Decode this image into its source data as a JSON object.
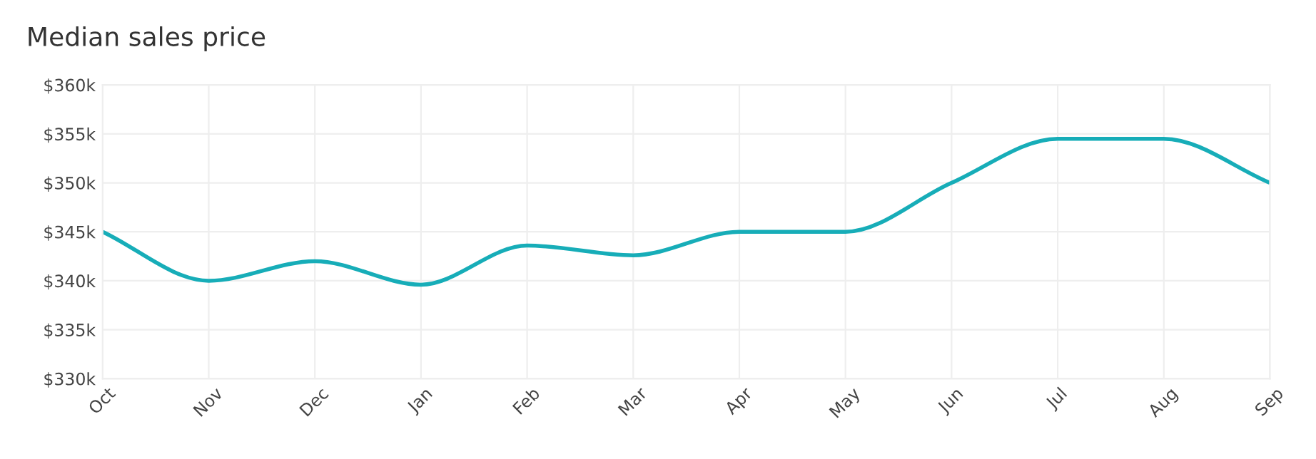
{
  "chart_data": {
    "type": "line",
    "title": "Median sales price",
    "categories": [
      "Oct",
      "Nov",
      "Dec",
      "Jan",
      "Feb",
      "Mar",
      "Apr",
      "May",
      "Jun",
      "Jul",
      "Aug",
      "Sep"
    ],
    "series": [
      {
        "color": "#17adb8",
        "values": [
          345,
          340,
          342,
          339.6,
          343.6,
          342.6,
          345,
          345,
          350,
          354.5,
          354.5,
          350
        ]
      }
    ],
    "ylim": [
      330,
      360
    ],
    "yticks": [
      {
        "value": 330,
        "label": "$330k"
      },
      {
        "value": 335,
        "label": "$335k"
      },
      {
        "value": 340,
        "label": "$340k"
      },
      {
        "value": 345,
        "label": "$345k"
      },
      {
        "value": 350,
        "label": "$350k"
      },
      {
        "value": 355,
        "label": "$355k"
      },
      {
        "value": 360,
        "label": "$360k"
      }
    ],
    "grid": true,
    "marker": "none",
    "line_style": "solid"
  }
}
